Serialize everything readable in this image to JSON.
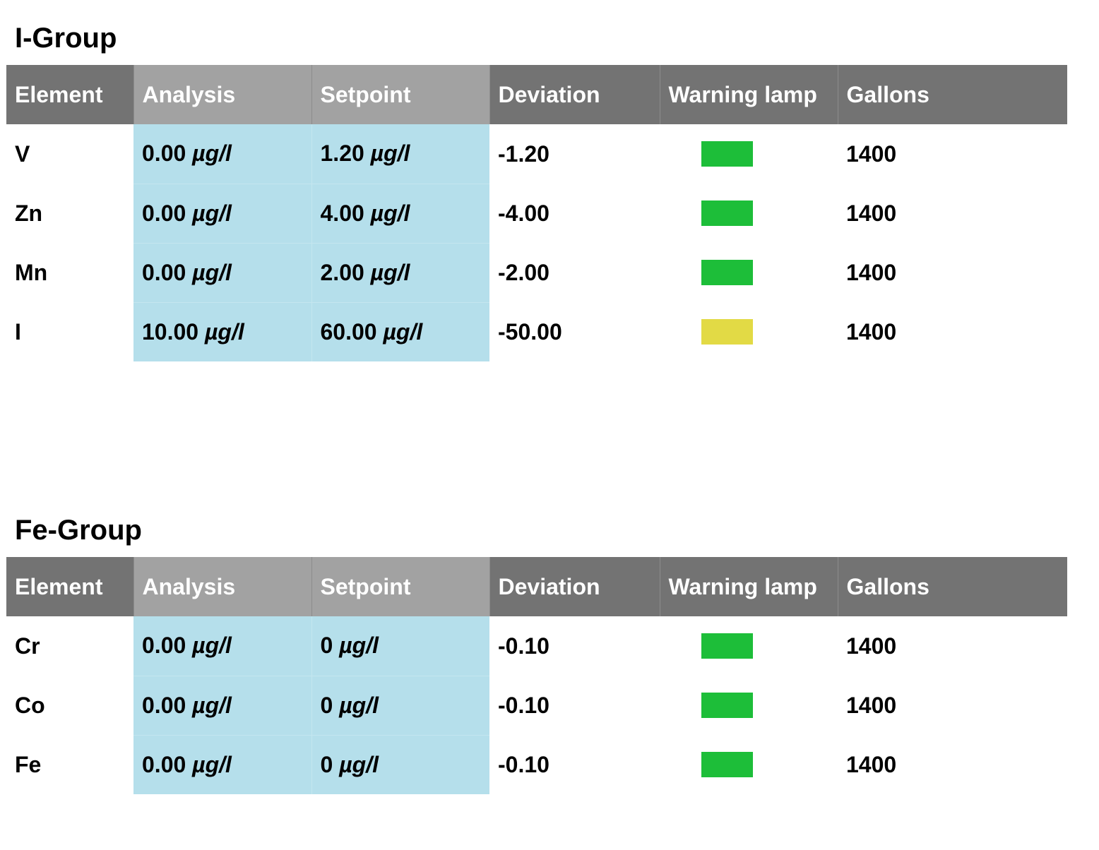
{
  "columns": [
    "Element",
    "Analysis",
    "Setpoint",
    "Deviation",
    "Warning lamp",
    "Gallons"
  ],
  "colors": {
    "header_dark": "#737373",
    "header_light": "#a2a2a2",
    "value_cell": "#b5dfeb",
    "lamp_green": "#1dbe39",
    "lamp_yellow": "#e2da45"
  },
  "groups": [
    {
      "title": "I-Group",
      "rows": [
        {
          "element": "V",
          "analysis": "0.00",
          "analysis_unit": "µg/l",
          "setpoint": "1.20",
          "setpoint_unit": "µg/l",
          "deviation": "-1.20",
          "lamp": "green",
          "gallons": "1400"
        },
        {
          "element": "Zn",
          "analysis": "0.00",
          "analysis_unit": "µg/l",
          "setpoint": "4.00",
          "setpoint_unit": "µg/l",
          "deviation": "-4.00",
          "lamp": "green",
          "gallons": "1400"
        },
        {
          "element": "Mn",
          "analysis": "0.00",
          "analysis_unit": "µg/l",
          "setpoint": "2.00",
          "setpoint_unit": "µg/l",
          "deviation": "-2.00",
          "lamp": "green",
          "gallons": "1400"
        },
        {
          "element": "I",
          "analysis": "10.00",
          "analysis_unit": "µg/l",
          "setpoint": "60.00",
          "setpoint_unit": "µg/l",
          "deviation": "-50.00",
          "lamp": "yellow",
          "gallons": "1400"
        }
      ]
    },
    {
      "title": "Fe-Group",
      "rows": [
        {
          "element": "Cr",
          "analysis": "0.00",
          "analysis_unit": "µg/l",
          "setpoint": "0",
          "setpoint_unit": "µg/l",
          "deviation": "-0.10",
          "lamp": "green",
          "gallons": "1400"
        },
        {
          "element": "Co",
          "analysis": "0.00",
          "analysis_unit": "µg/l",
          "setpoint": "0",
          "setpoint_unit": "µg/l",
          "deviation": "-0.10",
          "lamp": "green",
          "gallons": "1400"
        },
        {
          "element": "Fe",
          "analysis": "0.00",
          "analysis_unit": "µg/l",
          "setpoint": "0",
          "setpoint_unit": "µg/l",
          "deviation": "-0.10",
          "lamp": "green",
          "gallons": "1400"
        }
      ]
    }
  ]
}
